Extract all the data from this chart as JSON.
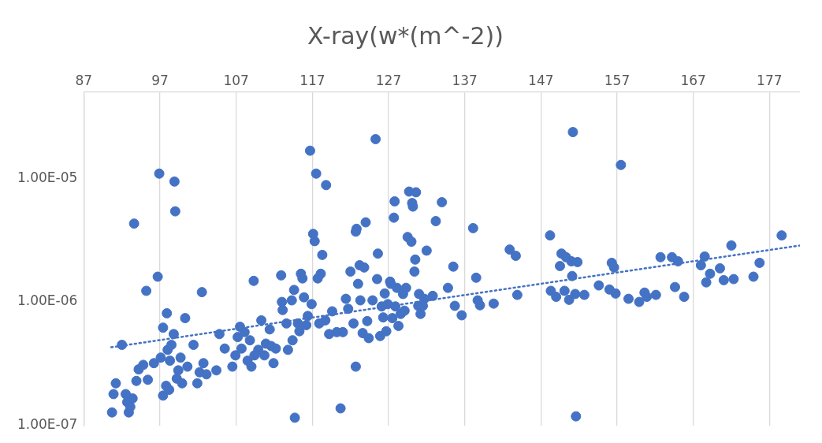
{
  "chart_data": {
    "type": "scatter",
    "title": "X-ray(w*(m^-2))",
    "log": "y",
    "grid": "x",
    "legend": false,
    "xlim": [
      87,
      181
    ],
    "xticks": [
      87,
      97,
      107,
      117,
      127,
      137,
      147,
      157,
      167,
      177
    ],
    "ylim": [
      1e-07,
      5e-05
    ],
    "yticks": [
      {
        "value": 1e-07,
        "label": "1.00E-07"
      },
      {
        "value": 1e-06,
        "label": "1.00E-06"
      },
      {
        "value": 1e-05,
        "label": "1.00E-05"
      }
    ],
    "series": [
      {
        "color": "#4472c4",
        "marker": "circle",
        "x": [
          90.7,
          90.9,
          91.2,
          92.0,
          92.5,
          92.7,
          92.9,
          93.1,
          93.4,
          93.6,
          93.9,
          94.2,
          94.8,
          95.2,
          95.4,
          96.2,
          96.7,
          96.9,
          97.1,
          97.4,
          97.4,
          97.8,
          97.9,
          98.0,
          98.2,
          98.3,
          98.5,
          98.8,
          98.9,
          99.0,
          99.2,
          99.4,
          99.7,
          99.9,
          100.3,
          100.6,
          101.4,
          101.9,
          102.2,
          102.5,
          102.7,
          103.1,
          104.4,
          104.8,
          105.5,
          106.5,
          106.9,
          107.2,
          107.5,
          107.7,
          108.1,
          108.5,
          108.8,
          109.0,
          109.3,
          109.4,
          109.9,
          110.3,
          110.7,
          110.9,
          111.4,
          111.6,
          111.9,
          112.2,
          112.9,
          113.0,
          113.1,
          113.6,
          113.8,
          114.3,
          114.4,
          114.6,
          114.7,
          115.1,
          115.3,
          115.5,
          115.7,
          115.9,
          116.2,
          116.4,
          116.7,
          116.9,
          117.1,
          117.3,
          117.5,
          117.7,
          117.9,
          118.1,
          118.3,
          118.7,
          118.8,
          119.2,
          119.6,
          120.2,
          120.7,
          121.0,
          121.4,
          121.7,
          122.0,
          122.4,
          122.7,
          122.7,
          122.8,
          123.0,
          123.2,
          123.3,
          123.6,
          123.8,
          124.0,
          124.2,
          124.4,
          124.9,
          125.3,
          125.5,
          125.6,
          125.9,
          126.1,
          126.3,
          126.5,
          126.7,
          126.9,
          127.2,
          127.3,
          127.5,
          127.7,
          127.8,
          127.9,
          128.1,
          128.3,
          128.6,
          128.9,
          129.1,
          129.3,
          129.5,
          129.7,
          130.0,
          130.1,
          130.2,
          130.4,
          130.5,
          130.6,
          130.9,
          131.0,
          131.2,
          131.5,
          131.7,
          132.0,
          132.8,
          133.2,
          134.0,
          134.8,
          135.5,
          135.7,
          136.6,
          138.1,
          138.5,
          138.7,
          139.0,
          140.8,
          142.9,
          143.7,
          143.9,
          148.2,
          148.3,
          149.0,
          149.5,
          149.7,
          150.1,
          150.3,
          150.7,
          151.0,
          151.1,
          151.2,
          151.5,
          151.6,
          151.8,
          152.7,
          154.6,
          156.0,
          156.3,
          156.6,
          156.8,
          157.5,
          158.5,
          159.9,
          160.6,
          160.9,
          162.1,
          162.7,
          164.2,
          164.6,
          165.0,
          165.8,
          168.0,
          168.5,
          168.7,
          169.2,
          170.5,
          171.0,
          172.0,
          172.3,
          174.9,
          175.7,
          178.6
        ],
        "values": [
          1.28e-07,
          1.8e-07,
          2.2e-07,
          4.5e-07,
          1.8e-07,
          1.55e-07,
          1.28e-07,
          1.42e-07,
          1.66e-07,
          4.3e-06,
          2.3e-07,
          2.85e-07,
          3.1e-07,
          1.23e-06,
          2.35e-07,
          3.2e-07,
          1.6e-06,
          1.09e-05,
          3.55e-07,
          1.75e-07,
          6.2e-07,
          2.1e-07,
          8.1e-07,
          4.1e-07,
          1.95e-07,
          3.35e-07,
          4.5e-07,
          5.5e-07,
          9.4e-06,
          5.4e-06,
          2.4e-07,
          2.8e-07,
          3.55e-07,
          2.2e-07,
          7.4e-07,
          3e-07,
          4.5e-07,
          2.2e-07,
          2.7e-07,
          1.2e-06,
          3.2e-07,
          2.6e-07,
          2.8e-07,
          5.5e-07,
          4.2e-07,
          3e-07,
          3.7e-07,
          5.2e-07,
          6.3e-07,
          4.2e-07,
          5.7e-07,
          3.35e-07,
          4.9e-07,
          3e-07,
          1.48e-06,
          3.7e-07,
          4.1e-07,
          7.1e-07,
          3.7e-07,
          4.6e-07,
          6e-07,
          4.4e-07,
          3.2e-07,
          4.2e-07,
          1.64e-06,
          1e-06,
          8.6e-07,
          6.7e-07,
          4.1e-07,
          1.03e-06,
          4.9e-07,
          1.25e-06,
          1.16e-07,
          6.7e-07,
          5.8e-07,
          1.69e-06,
          1.55e-06,
          1.09e-06,
          6.5e-07,
          7.7e-07,
          1.67e-05,
          9.6e-07,
          3.55e-06,
          3.1e-06,
          1.09e-05,
          1.55e-06,
          6.7e-07,
          1.69e-06,
          2.4e-06,
          7.1e-07,
          8.8e-06,
          5.5e-07,
          8.4e-07,
          5.7e-07,
          1.38e-07,
          5.7e-07,
          1.06e-06,
          8.8e-07,
          1.76e-06,
          6.7e-07,
          3e-07,
          3.7e-06,
          3.9e-06,
          1.4e-06,
          1.98e-06,
          1.03e-06,
          5.6e-07,
          1.9e-06,
          4.4e-06,
          7e-07,
          5.1e-07,
          1.03e-06,
          2.07e-05,
          1.53e-06,
          2.46e-06,
          5.3e-07,
          9.2e-07,
          7.5e-07,
          1.17e-06,
          5.8e-07,
          9.6e-07,
          1.46e-06,
          1.4e-06,
          7.4e-07,
          4.8e-06,
          6.5e-06,
          9.2e-07,
          1.3e-06,
          6.4e-07,
          8e-07,
          1.16e-06,
          8.5e-07,
          1.3e-06,
          3.35e-06,
          7.8e-06,
          3.07e-06,
          6.3e-06,
          5.9e-06,
          1.76e-06,
          2.2e-06,
          7.7e-06,
          9.3e-07,
          1.16e-06,
          8e-07,
          9.3e-07,
          1.06e-06,
          2.6e-06,
          1.12e-06,
          4.5e-06,
          6.4e-06,
          1.3e-06,
          1.93e-06,
          9.3e-07,
          7.8e-07,
          3.95e-06,
          1.57e-06,
          1.03e-06,
          9.4e-07,
          9.7e-07,
          2.65e-06,
          2.36e-06,
          1.14e-06,
          3.45e-06,
          1.23e-06,
          1.1e-06,
          1.95e-06,
          2.46e-06,
          1.23e-06,
          2.3e-06,
          1.04e-06,
          2.13e-06,
          1.62e-06,
          2.36e-05,
          1.16e-06,
          1.19e-07,
          2.1e-06,
          1.14e-06,
          1.36e-06,
          1.26e-06,
          2.07e-06,
          1.9e-06,
          1.17e-06,
          1.28e-05,
          1.06e-06,
          1e-06,
          1.19e-06,
          1.1e-06,
          1.14e-06,
          2.3e-06,
          2.3e-06,
          1.32e-06,
          2.13e-06,
          1.1e-06,
          1.98e-06,
          2.33e-06,
          1.44e-06,
          1.69e-06,
          1.87e-06,
          1.5e-06,
          2.86e-06,
          1.53e-06,
          1.6e-06,
          2.07e-06,
          3.45e-06
        ]
      },
      {
        "type": "line",
        "color": "#4472c4",
        "marker": "none",
        "line_style": "dotted",
        "x": [
          90.6,
          181
        ],
        "values": [
          4.3e-07,
          2.86e-06
        ]
      }
    ]
  }
}
